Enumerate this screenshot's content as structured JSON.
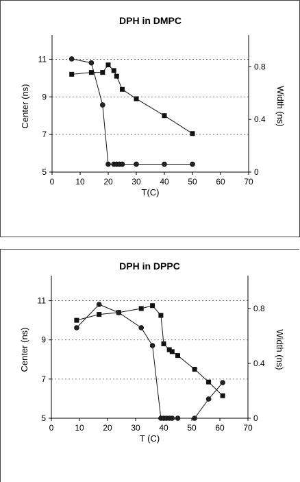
{
  "chart_data": [
    {
      "type": "line",
      "title": "DPH in DMPC",
      "xlabel": "T(C)",
      "ylabel": "Center (ns)",
      "y2label": "Width (ns)",
      "xlim": [
        0,
        70
      ],
      "ylim": [
        5,
        12
      ],
      "y2lim": [
        0,
        1.0
      ],
      "xticks": [
        "0",
        "10",
        "20",
        "30",
        "40",
        "50",
        "60",
        "70"
      ],
      "yticks": [
        "5",
        "7",
        "9",
        "11"
      ],
      "y2ticks": [
        "0",
        "0.4",
        "0.8"
      ],
      "grid": "horizontal dotted",
      "series": [
        {
          "marker": "square",
          "axis": "left",
          "x": [
            7,
            14,
            18,
            20,
            22,
            23,
            25,
            30,
            40,
            50
          ],
          "y": [
            10.2,
            10.3,
            10.3,
            10.7,
            10.4,
            10.1,
            9.4,
            8.9,
            8.0,
            7.05
          ]
        },
        {
          "marker": "circle",
          "axis": "right",
          "x": [
            7,
            14,
            18,
            20,
            22,
            23,
            24,
            25,
            30,
            40,
            50
          ],
          "y": [
            0.86,
            0.83,
            0.51,
            0.06,
            0.06,
            0.06,
            0.06,
            0.06,
            0.06,
            0.06,
            0.06
          ]
        }
      ]
    },
    {
      "type": "line",
      "title": "DPH in DPPC",
      "xlabel": "T (C)",
      "ylabel": "Center (ns)",
      "y2label": "Width (ns)",
      "xlim": [
        0,
        70
      ],
      "ylim": [
        5,
        12
      ],
      "y2lim": [
        0,
        1.0
      ],
      "xticks": [
        "0",
        "10",
        "20",
        "30",
        "40",
        "50",
        "60",
        "70"
      ],
      "yticks": [
        "5",
        "7",
        "9",
        "11"
      ],
      "y2ticks": [
        "0",
        "0.4",
        "0.8"
      ],
      "grid": "horizontal dotted",
      "series": [
        {
          "marker": "square",
          "axis": "left",
          "x": [
            9,
            17,
            24,
            32,
            36,
            39,
            40,
            42,
            43,
            45,
            51,
            56,
            61
          ],
          "y": [
            10.0,
            10.3,
            10.4,
            10.6,
            10.75,
            10.25,
            8.8,
            8.5,
            8.4,
            8.2,
            7.5,
            6.85,
            6.15
          ]
        },
        {
          "marker": "circle",
          "axis": "right",
          "x": [
            9,
            17,
            24,
            32,
            36,
            39,
            40,
            41,
            42,
            43,
            45,
            51,
            56,
            61
          ],
          "y": [
            0.66,
            0.83,
            0.77,
            0.66,
            0.53,
            0.0,
            0.0,
            0.0,
            0.0,
            0.0,
            0.0,
            0.0,
            0.14,
            0.26
          ]
        }
      ]
    }
  ]
}
